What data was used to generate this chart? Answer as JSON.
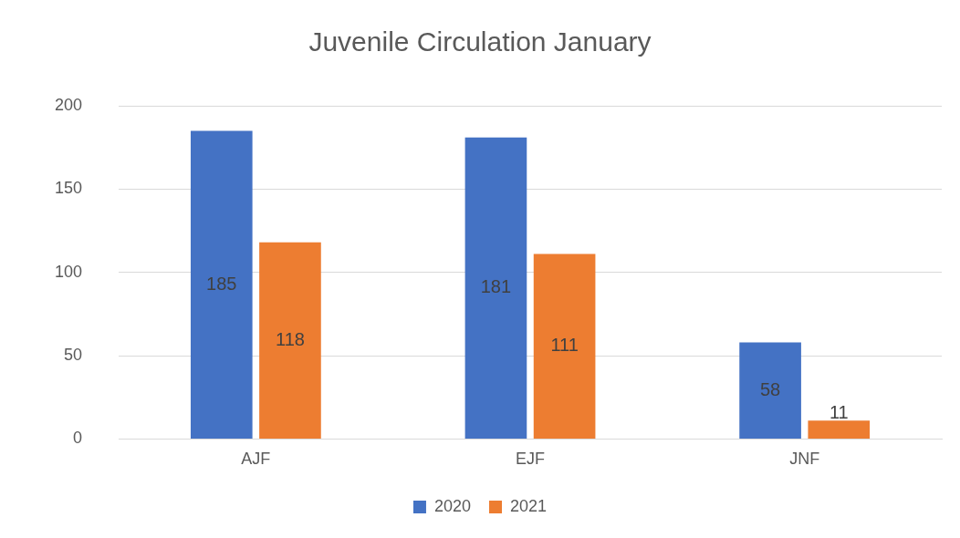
{
  "chart_data": {
    "type": "bar",
    "title": "Juvenile Circulation January",
    "categories": [
      "AJF",
      "EJF",
      "JNF"
    ],
    "series": [
      {
        "name": "2020",
        "color": "#4472c4",
        "values": [
          185,
          181,
          58
        ]
      },
      {
        "name": "2021",
        "color": "#ed7d31",
        "values": [
          118,
          111,
          11
        ]
      }
    ],
    "ylim": [
      0,
      200
    ],
    "yticks": [
      0,
      50,
      100,
      150,
      200
    ],
    "grid": "y",
    "legend": "bottom",
    "data_labels": true
  }
}
